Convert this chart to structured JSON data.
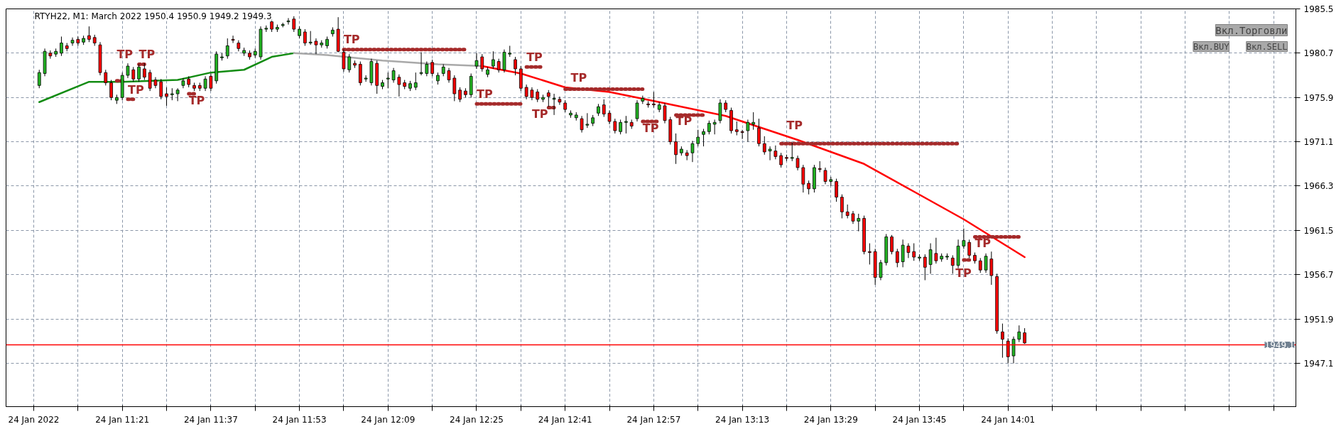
{
  "chart_data": {
    "type": "candlestick",
    "title": "RTYH22, M1:  March 2022  1950.4 1950.9 1949.2 1949.3",
    "colors": [
      "#22b422",
      "#22b422",
      "#ff0000",
      "#22b422",
      "#22b422",
      "#ff0000",
      "#22b422",
      "#ff0000",
      "#22b422",
      "#ff0000",
      "#ff0000",
      "#ff0000",
      "#ff0000",
      "#ff0000",
      "#22b422",
      "#22b422",
      "#22b422",
      "#ff0000",
      "#22b422",
      "#ff0000",
      "#ff0000",
      "#ff0000",
      "#ff0000",
      "#ff0000",
      "#22b422",
      "#22b422",
      "#22b422",
      "#ff0000",
      "#ff0000",
      "#ff0000",
      "#22b422",
      "#ff0000",
      "#22b422",
      "#22b422",
      "#22b422",
      "#ff0000",
      "#ff0000",
      "#22b422",
      "#ff0000",
      "#22b422",
      "#22b422",
      "#22b422",
      "#ff0000",
      "#22b422",
      "#22b422",
      "#22b422",
      "#ff0000",
      "#22b422",
      "#ff0000",
      "#22b422",
      "#ff0000",
      "#22b422",
      "#22b422",
      "#22b422",
      "#ff0000",
      "#ff0000",
      "#22b422",
      "#ff0000",
      "#ff0000",
      "#22b422",
      "#22b422",
      "#ff0000",
      "#22b422",
      "#22b422",
      "#22b422",
      "#ff0000",
      "#ff0000",
      "#22b422",
      "#22b422",
      "#22b422",
      "#22b422",
      "#ff0000",
      "#22b422",
      "#22b422",
      "#ff0000",
      "#ff0000",
      "#ff0000",
      "#ff0000",
      "#22b422",
      "#22b422",
      "#ff0000",
      "#22b422",
      "#22b422",
      "#ff0000",
      "#22b422",
      "#22b422",
      "#ff0000",
      "#ff0000",
      "#ff0000",
      "#ff0000",
      "#ff0000",
      "#22b422",
      "#ff0000",
      "#22b422",
      "#ff0000",
      "#ff0000",
      "#22b422",
      "#22b422",
      "#ff0000",
      "#22b422",
      "#22b422",
      "#22b422",
      "#ff0000",
      "#ff0000",
      "#ff0000",
      "#22b422",
      "#22b422",
      "#ff0000",
      "#22b422",
      "#22b422",
      "#ff0000",
      "#ff0000",
      "#22b422",
      "#ff0000",
      "#ff0000",
      "#ff0000",
      "#22b422",
      "#ff0000",
      "#22b422",
      "#22b422",
      "#22b422",
      "#22b422",
      "#22b422",
      "#22b422",
      "#ff0000",
      "#ff0000",
      "#ff0000",
      "#ff0000",
      "#22b422",
      "#22b422",
      "#ff0000",
      "#ff0000",
      "#22b422",
      "#ff0000",
      "#ff0000",
      "#ff0000",
      "#22b422",
      "#ff0000",
      "#ff0000",
      "#ff0000",
      "#22b422",
      "#ff0000",
      "#ff0000",
      "#22b422",
      "#ff0000",
      "#ff0000",
      "#ff0000",
      "#ff0000",
      "#22b422",
      "#ff0000",
      "#ff0000",
      "#ff0000",
      "#22b422",
      "#22b422",
      "#ff0000",
      "#ff0000",
      "#22b422",
      "#ff0000",
      "#ff0000",
      "#22b422",
      "#ff0000",
      "#22b422",
      "#ff0000",
      "#22b422",
      "#22b422",
      "#ff0000",
      "#22b422",
      "#22b422",
      "#ff0000",
      "#ff0000",
      "#ff0000",
      "#22b422",
      "#ff0000",
      "#ff0000",
      "#ff0000",
      "#ff0000",
      "#22b422",
      "#22b422",
      "#ff0000"
    ],
    "x": [
      "2022-01-24T11:06",
      "2022-01-24T11:07",
      "2022-01-24T11:08",
      "2022-01-24T11:09",
      "2022-01-24T11:10",
      "2022-01-24T11:11",
      "2022-01-24T11:12",
      "2022-01-24T11:13",
      "2022-01-24T11:14",
      "2022-01-24T11:15",
      "2022-01-24T11:16",
      "2022-01-24T11:17",
      "2022-01-24T11:18",
      "2022-01-24T11:19",
      "2022-01-24T11:20",
      "2022-01-24T11:21",
      "2022-01-24T11:22",
      "2022-01-24T11:23",
      "2022-01-24T11:24",
      "2022-01-24T11:25",
      "2022-01-24T11:26",
      "2022-01-24T11:27",
      "2022-01-24T11:28",
      "2022-01-24T11:29",
      "2022-01-24T11:30",
      "2022-01-24T11:31",
      "2022-01-24T11:32",
      "2022-01-24T11:33",
      "2022-01-24T11:34",
      "2022-01-24T11:35",
      "2022-01-24T11:36",
      "2022-01-24T11:37",
      "2022-01-24T11:38",
      "2022-01-24T11:39",
      "2022-01-24T11:40",
      "2022-01-24T11:41",
      "2022-01-24T11:42",
      "2022-01-24T11:43",
      "2022-01-24T11:44",
      "2022-01-24T11:45",
      "2022-01-24T11:46",
      "2022-01-24T11:47",
      "2022-01-24T11:48",
      "2022-01-24T11:49",
      "2022-01-24T11:50",
      "2022-01-24T11:51",
      "2022-01-24T11:52",
      "2022-01-24T11:53",
      "2022-01-24T11:54",
      "2022-01-24T11:55",
      "2022-01-24T11:56",
      "2022-01-24T11:57",
      "2022-01-24T11:58",
      "2022-01-24T11:59",
      "2022-01-24T12:00",
      "2022-01-24T12:01",
      "2022-01-24T12:02",
      "2022-01-24T12:03",
      "2022-01-24T12:04",
      "2022-01-24T12:05",
      "2022-01-24T12:06",
      "2022-01-24T12:07",
      "2022-01-24T12:08",
      "2022-01-24T12:09",
      "2022-01-24T12:10",
      "2022-01-24T12:11",
      "2022-01-24T12:12",
      "2022-01-24T12:13",
      "2022-01-24T12:14",
      "2022-01-24T12:15",
      "2022-01-24T12:16",
      "2022-01-24T12:17",
      "2022-01-24T12:18",
      "2022-01-24T12:19",
      "2022-01-24T12:20",
      "2022-01-24T12:21",
      "2022-01-24T12:22",
      "2022-01-24T12:23",
      "2022-01-24T12:24",
      "2022-01-24T12:25",
      "2022-01-24T12:26",
      "2022-01-24T12:27",
      "2022-01-24T12:28",
      "2022-01-24T12:29",
      "2022-01-24T12:30",
      "2022-01-24T12:31",
      "2022-01-24T12:32",
      "2022-01-24T12:33",
      "2022-01-24T12:34",
      "2022-01-24T12:35",
      "2022-01-24T12:36",
      "2022-01-24T12:37",
      "2022-01-24T12:38",
      "2022-01-24T12:39",
      "2022-01-24T12:40",
      "2022-01-24T12:41",
      "2022-01-24T12:42",
      "2022-01-24T12:43",
      "2022-01-24T12:44",
      "2022-01-24T12:45",
      "2022-01-24T12:46",
      "2022-01-24T12:47",
      "2022-01-24T12:48",
      "2022-01-24T12:49",
      "2022-01-24T12:50",
      "2022-01-24T12:51",
      "2022-01-24T12:52",
      "2022-01-24T12:53",
      "2022-01-24T12:54",
      "2022-01-24T12:55",
      "2022-01-24T12:56",
      "2022-01-24T12:57",
      "2022-01-24T12:58",
      "2022-01-24T12:59",
      "2022-01-24T13:00",
      "2022-01-24T13:01",
      "2022-01-24T13:02",
      "2022-01-24T13:03",
      "2022-01-24T13:04",
      "2022-01-24T13:05",
      "2022-01-24T13:06",
      "2022-01-24T13:07",
      "2022-01-24T13:08",
      "2022-01-24T13:09",
      "2022-01-24T13:10",
      "2022-01-24T13:11",
      "2022-01-24T13:12",
      "2022-01-24T13:13",
      "2022-01-24T13:14",
      "2022-01-24T13:15",
      "2022-01-24T13:16",
      "2022-01-24T13:17",
      "2022-01-24T13:18",
      "2022-01-24T13:19",
      "2022-01-24T13:20",
      "2022-01-24T13:21",
      "2022-01-24T13:22",
      "2022-01-24T13:23",
      "2022-01-24T13:24",
      "2022-01-24T13:25",
      "2022-01-24T13:26",
      "2022-01-24T13:27",
      "2022-01-24T13:28",
      "2022-01-24T13:29",
      "2022-01-24T13:30",
      "2022-01-24T13:31",
      "2022-01-24T13:32",
      "2022-01-24T13:33",
      "2022-01-24T13:34",
      "2022-01-24T13:35",
      "2022-01-24T13:36",
      "2022-01-24T13:37",
      "2022-01-24T13:38",
      "2022-01-24T13:39",
      "2022-01-24T13:40",
      "2022-01-24T13:41",
      "2022-01-24T13:42",
      "2022-01-24T13:43",
      "2022-01-24T13:44",
      "2022-01-24T13:45",
      "2022-01-24T13:46",
      "2022-01-24T13:47",
      "2022-01-24T13:48",
      "2022-01-24T13:49",
      "2022-01-24T13:50",
      "2022-01-24T13:51",
      "2022-01-24T13:52",
      "2022-01-24T13:53",
      "2022-01-24T13:54",
      "2022-01-24T13:55",
      "2022-01-24T13:56",
      "2022-01-24T13:57",
      "2022-01-24T13:58",
      "2022-01-24T13:59",
      "2022-01-24T14:00",
      "2022-01-24T14:01",
      "2022-01-24T14:02",
      "2022-01-24T14:03",
      "2022-01-24T14:04"
    ],
    "ohlc": [
      [
        1977.2,
        1978.9,
        1976.9,
        1978.6
      ],
      [
        1978.5,
        1981.2,
        1978.2,
        1980.9
      ],
      [
        1980.7,
        1981.0,
        1980.1,
        1980.4
      ],
      [
        1980.6,
        1981.2,
        1980.3,
        1980.9
      ],
      [
        1980.7,
        1982.5,
        1980.4,
        1981.8
      ],
      [
        1981.5,
        1981.8,
        1980.9,
        1981.2
      ],
      [
        1981.8,
        1982.4,
        1981.5,
        1982.1
      ],
      [
        1982.2,
        1982.5,
        1981.5,
        1981.8
      ],
      [
        1981.9,
        1982.6,
        1981.6,
        1982.3
      ],
      [
        1982.6,
        1983.6,
        1981.9,
        1982.2
      ],
      [
        1982.4,
        1982.7,
        1981.5,
        1981.8
      ],
      [
        1981.6,
        1981.9,
        1978.3,
        1978.6
      ],
      [
        1978.6,
        1978.9,
        1977.2,
        1977.5
      ],
      [
        1977.5,
        1977.8,
        1975.6,
        1975.9
      ],
      [
        1975.6,
        1976.2,
        1975.2,
        1975.9
      ],
      [
        1975.9,
        1978.6,
        1975.6,
        1978.3
      ],
      [
        1978.3,
        1979.6,
        1978.0,
        1979.3
      ],
      [
        1978.9,
        1979.2,
        1977.6,
        1977.9
      ],
      [
        1977.9,
        1979.5,
        1977.6,
        1979.2
      ],
      [
        1979.0,
        1979.6,
        1977.8,
        1978.1
      ],
      [
        1978.6,
        1978.9,
        1976.6,
        1976.9
      ],
      [
        1977.8,
        1978.1,
        1976.9,
        1977.2
      ],
      [
        1977.6,
        1977.9,
        1975.7,
        1976.0
      ],
      [
        1976.3,
        1977.0,
        1975.0,
        1976.0
      ],
      [
        1976.2,
        1976.9,
        1975.6,
        1976.3
      ],
      [
        1976.3,
        1976.9,
        1975.5,
        1976.7
      ],
      [
        1977.2,
        1978.0,
        1976.9,
        1977.7
      ],
      [
        1977.9,
        1978.2,
        1977.0,
        1977.3
      ],
      [
        1977.2,
        1977.5,
        1976.6,
        1976.9
      ],
      [
        1977.2,
        1977.5,
        1976.6,
        1976.9
      ],
      [
        1976.9,
        1978.2,
        1976.6,
        1977.9
      ],
      [
        1978.2,
        1978.5,
        1976.6,
        1976.9
      ],
      [
        1977.7,
        1980.9,
        1977.4,
        1980.6
      ],
      [
        1980.2,
        1980.7,
        1979.9,
        1980.3
      ],
      [
        1980.4,
        1982.3,
        1980.1,
        1981.5
      ],
      [
        1982.2,
        1982.6,
        1981.8,
        1982.1
      ],
      [
        1981.8,
        1982.1,
        1980.9,
        1981.2
      ],
      [
        1980.7,
        1981.3,
        1980.4,
        1981.0
      ],
      [
        1980.7,
        1981.0,
        1980.0,
        1980.3
      ],
      [
        1980.5,
        1981.2,
        1980.2,
        1980.9
      ],
      [
        1980.3,
        1983.6,
        1980.0,
        1983.3
      ],
      [
        1983.3,
        1983.7,
        1983.0,
        1983.4
      ],
      [
        1984.1,
        1984.4,
        1983.0,
        1983.3
      ],
      [
        1983.3,
        1983.8,
        1983.0,
        1983.5
      ],
      [
        1983.7,
        1984.0,
        1983.5,
        1983.8
      ],
      [
        1984.1,
        1984.5,
        1983.8,
        1984.2
      ],
      [
        1984.4,
        1984.7,
        1983.0,
        1983.3
      ],
      [
        1982.6,
        1983.6,
        1982.3,
        1983.3
      ],
      [
        1983.0,
        1983.3,
        1981.5,
        1981.8
      ],
      [
        1981.8,
        1983.1,
        1981.6,
        1981.9
      ],
      [
        1982.0,
        1982.3,
        1980.6,
        1981.6
      ],
      [
        1981.6,
        1982.1,
        1981.3,
        1981.8
      ],
      [
        1981.5,
        1982.5,
        1981.2,
        1982.2
      ],
      [
        1982.8,
        1983.5,
        1982.5,
        1983.2
      ],
      [
        1983.3,
        1984.6,
        1980.8,
        1980.9
      ],
      [
        1980.8,
        1981.1,
        1978.7,
        1979.0
      ],
      [
        1978.9,
        1980.6,
        1978.6,
        1980.3
      ],
      [
        1979.6,
        1979.9,
        1979.1,
        1979.4
      ],
      [
        1979.5,
        1979.8,
        1977.2,
        1977.5
      ],
      [
        1977.9,
        1978.3,
        1977.6,
        1978.0
      ],
      [
        1977.5,
        1980.1,
        1977.2,
        1979.8
      ],
      [
        1979.6,
        1979.9,
        1976.3,
        1977.2
      ],
      [
        1977.1,
        1977.8,
        1976.8,
        1977.5
      ],
      [
        1977.9,
        1978.6,
        1976.9,
        1978.0
      ],
      [
        1977.8,
        1979.1,
        1977.5,
        1978.8
      ],
      [
        1978.1,
        1978.4,
        1976.0,
        1977.3
      ],
      [
        1977.5,
        1977.8,
        1976.8,
        1977.1
      ],
      [
        1976.9,
        1977.7,
        1976.6,
        1977.4
      ],
      [
        1977.0,
        1978.6,
        1976.7,
        1977.5
      ],
      [
        1978.5,
        1980.8,
        1978.3,
        1978.6
      ],
      [
        1978.5,
        1979.8,
        1978.2,
        1979.5
      ],
      [
        1979.7,
        1980.0,
        1978.2,
        1978.5
      ],
      [
        1977.7,
        1978.6,
        1977.3,
        1978.3
      ],
      [
        1978.5,
        1979.5,
        1978.2,
        1979.2
      ],
      [
        1978.8,
        1979.1,
        1977.5,
        1977.8
      ],
      [
        1978.0,
        1978.3,
        1975.5,
        1976.3
      ],
      [
        1976.7,
        1977.0,
        1975.4,
        1975.7
      ],
      [
        1976.6,
        1976.9,
        1975.9,
        1976.2
      ],
      [
        1976.2,
        1978.5,
        1975.9,
        1978.2
      ],
      [
        1979.3,
        1980.7,
        1979.0,
        1979.9
      ],
      [
        1980.3,
        1980.6,
        1978.7,
        1979.0
      ],
      [
        1978.4,
        1979.2,
        1978.1,
        1978.9
      ],
      [
        1979.3,
        1980.9,
        1979.0,
        1980.0
      ],
      [
        1979.8,
        1980.1,
        1978.6,
        1978.9
      ],
      [
        1978.9,
        1981.1,
        1978.6,
        1980.8
      ],
      [
        1980.6,
        1981.5,
        1980.3,
        1980.7
      ],
      [
        1980.0,
        1980.3,
        1978.3,
        1979.0
      ],
      [
        1979.0,
        1979.3,
        1976.6,
        1976.9
      ],
      [
        1977.0,
        1977.3,
        1975.7,
        1976.0
      ],
      [
        1976.7,
        1977.0,
        1975.6,
        1975.9
      ],
      [
        1976.5,
        1976.8,
        1975.4,
        1975.7
      ],
      [
        1975.7,
        1976.2,
        1975.4,
        1975.9
      ],
      [
        1976.4,
        1976.7,
        1974.9,
        1976.0
      ],
      [
        1975.7,
        1976.3,
        1974.0,
        1975.8
      ],
      [
        1975.7,
        1976.0,
        1975.1,
        1975.4
      ],
      [
        1975.3,
        1975.6,
        1974.3,
        1974.6
      ],
      [
        1974.0,
        1974.5,
        1973.7,
        1974.2
      ],
      [
        1973.7,
        1974.3,
        1973.4,
        1974.0
      ],
      [
        1973.6,
        1973.9,
        1972.1,
        1972.4
      ],
      [
        1972.9,
        1974.2,
        1972.6,
        1973.0
      ],
      [
        1973.1,
        1974.0,
        1972.8,
        1973.7
      ],
      [
        1974.2,
        1975.2,
        1973.9,
        1974.9
      ],
      [
        1975.1,
        1975.7,
        1973.8,
        1974.1
      ],
      [
        1974.2,
        1974.5,
        1973.0,
        1973.3
      ],
      [
        1973.3,
        1973.6,
        1972.0,
        1972.3
      ],
      [
        1972.2,
        1973.5,
        1971.9,
        1973.2
      ],
      [
        1973.2,
        1973.9,
        1972.0,
        1973.3
      ],
      [
        1973.2,
        1973.5,
        1972.5,
        1972.8
      ],
      [
        1973.6,
        1975.6,
        1973.3,
        1975.3
      ],
      [
        1975.5,
        1976.1,
        1975.2,
        1975.8
      ],
      [
        1975.2,
        1975.5,
        1974.8,
        1975.1
      ],
      [
        1975.2,
        1976.5,
        1974.8,
        1975.1
      ],
      [
        1974.6,
        1975.4,
        1974.3,
        1975.1
      ],
      [
        1975.0,
        1975.3,
        1973.1,
        1973.4
      ],
      [
        1973.5,
        1973.8,
        1970.8,
        1971.1
      ],
      [
        1971.1,
        1972.0,
        1968.7,
        1969.7
      ],
      [
        1969.9,
        1970.6,
        1969.6,
        1970.3
      ],
      [
        1969.9,
        1970.2,
        1969.1,
        1969.6
      ],
      [
        1969.9,
        1971.2,
        1968.9,
        1970.9
      ],
      [
        1970.9,
        1972.4,
        1970.6,
        1971.6
      ],
      [
        1971.9,
        1972.5,
        1970.6,
        1972.2
      ],
      [
        1972.2,
        1973.4,
        1971.9,
        1973.1
      ],
      [
        1973.0,
        1973.5,
        1971.9,
        1973.2
      ],
      [
        1973.4,
        1975.7,
        1973.1,
        1975.3
      ],
      [
        1975.3,
        1975.6,
        1974.3,
        1974.6
      ],
      [
        1974.5,
        1974.8,
        1972.0,
        1972.3
      ],
      [
        1972.4,
        1973.3,
        1971.8,
        1972.2
      ],
      [
        1972.2,
        1972.4,
        1971.4,
        1972.1
      ],
      [
        1972.3,
        1973.5,
        1971.1,
        1973.2
      ],
      [
        1973.0,
        1974.3,
        1972.4,
        1973.2
      ],
      [
        1972.6,
        1973.6,
        1970.6,
        1970.9
      ],
      [
        1970.9,
        1971.7,
        1969.7,
        1970.0
      ],
      [
        1970.1,
        1970.6,
        1969.1,
        1970.3
      ],
      [
        1970.1,
        1970.7,
        1969.2,
        1969.5
      ],
      [
        1969.6,
        1969.9,
        1968.3,
        1968.6
      ],
      [
        1969.4,
        1969.7,
        1969.0,
        1969.3
      ],
      [
        1969.3,
        1971.0,
        1969.0,
        1969.4
      ],
      [
        1969.3,
        1969.6,
        1968.0,
        1968.3
      ],
      [
        1968.3,
        1968.6,
        1965.6,
        1966.5
      ],
      [
        1966.6,
        1966.9,
        1965.4,
        1966.0
      ],
      [
        1966.0,
        1968.6,
        1965.6,
        1968.3
      ],
      [
        1968.2,
        1969.0,
        1967.8,
        1968.1
      ],
      [
        1968.0,
        1968.3,
        1966.5,
        1966.8
      ],
      [
        1966.8,
        1967.3,
        1966.3,
        1967.0
      ],
      [
        1966.8,
        1967.1,
        1964.6,
        1965.1
      ],
      [
        1965.1,
        1965.4,
        1962.8,
        1963.5
      ],
      [
        1963.5,
        1964.3,
        1962.8,
        1963.1
      ],
      [
        1963.3,
        1963.6,
        1962.2,
        1962.5
      ],
      [
        1962.5,
        1963.3,
        1961.4,
        1962.8
      ],
      [
        1962.8,
        1963.1,
        1958.9,
        1959.2
      ],
      [
        1959.2,
        1960.1,
        1957.8,
        1959.1
      ],
      [
        1959.2,
        1959.5,
        1955.6,
        1956.4
      ],
      [
        1956.4,
        1958.3,
        1956.1,
        1958.0
      ],
      [
        1958.0,
        1961.1,
        1957.7,
        1960.8
      ],
      [
        1960.8,
        1961.0,
        1958.9,
        1959.2
      ],
      [
        1959.2,
        1959.5,
        1957.5,
        1958.0
      ],
      [
        1958.1,
        1960.5,
        1957.5,
        1959.9
      ],
      [
        1959.8,
        1960.1,
        1958.5,
        1959.1
      ],
      [
        1959.2,
        1960.1,
        1958.2,
        1958.6
      ],
      [
        1958.5,
        1958.9,
        1958.2,
        1958.6
      ],
      [
        1958.6,
        1958.9,
        1956.1,
        1957.5
      ],
      [
        1957.8,
        1960.1,
        1956.8,
        1959.4
      ],
      [
        1959.0,
        1960.7,
        1957.9,
        1958.2
      ],
      [
        1958.4,
        1959.0,
        1958.1,
        1958.7
      ],
      [
        1958.6,
        1959.0,
        1958.3,
        1958.7
      ],
      [
        1958.5,
        1958.8,
        1956.8,
        1957.7
      ],
      [
        1957.7,
        1960.5,
        1957.4,
        1959.8
      ],
      [
        1959.8,
        1961.7,
        1959.5,
        1960.4
      ],
      [
        1960.2,
        1960.5,
        1958.5,
        1958.8
      ],
      [
        1958.8,
        1959.1,
        1957.9,
        1958.2
      ],
      [
        1958.2,
        1958.5,
        1956.9,
        1957.2
      ],
      [
        1957.2,
        1959.0,
        1956.9,
        1958.7
      ],
      [
        1958.4,
        1959.2,
        1955.6,
        1956.6
      ],
      [
        1956.5,
        1956.8,
        1950.3,
        1950.6
      ],
      [
        1950.5,
        1951.4,
        1947.7,
        1949.7
      ],
      [
        1949.5,
        1949.8,
        1947.1,
        1947.8
      ],
      [
        1947.9,
        1950.0,
        1947.1,
        1949.7
      ],
      [
        1949.7,
        1951.2,
        1949.4,
        1950.5
      ],
      [
        1950.4,
        1950.9,
        1949.2,
        1949.3
      ]
    ],
    "series": [
      {
        "type": "line",
        "color": "#138c13",
        "x": [
          "2022-01-24T11:06",
          "2022-01-24T11:15",
          "2022-01-24T11:21",
          "2022-01-24T11:31",
          "2022-01-24T11:37",
          "2022-01-24T11:43",
          "2022-01-24T11:48",
          "2022-01-24T11:52"
        ],
        "values": [
          1975.4,
          1977.6,
          1977.6,
          1977.8,
          1978.6,
          1978.9,
          1980.3,
          1980.7
        ]
      },
      {
        "type": "line",
        "color": "#a9a9a9",
        "x": [
          "2022-01-24T11:52",
          "2022-01-24T11:58",
          "2022-01-24T12:08",
          "2022-01-24T12:18",
          "2022-01-24T12:26"
        ],
        "values": [
          1980.7,
          1980.5,
          1979.9,
          1979.5,
          1979.3
        ]
      },
      {
        "type": "line",
        "color": "#ff0000",
        "x": [
          "2022-01-24T12:26",
          "2022-01-24T12:33",
          "2022-01-24T12:41",
          "2022-01-24T12:49",
          "2022-01-24T12:58",
          "2022-01-24T13:10",
          "2022-01-24T13:23",
          "2022-01-24T13:35",
          "2022-01-24T13:44",
          "2022-01-24T13:53",
          "2022-01-24T14:04"
        ],
        "values": [
          1979.3,
          1978.5,
          1977.0,
          1976.5,
          1975.4,
          1973.9,
          1971.3,
          1968.7,
          1965.7,
          1962.7,
          1958.6
        ]
      },
      {
        "type": "line",
        "line_style": "dotted",
        "color": "#a52a2a",
        "x": [
          "2022-01-24T12:01",
          "2022-01-24T12:23"
        ],
        "values": [
          1981.1,
          1981.1
        ]
      },
      {
        "type": "line",
        "line_style": "dotted",
        "color": "#a52a2a",
        "x": [
          "2022-01-24T12:25",
          "2022-01-24T12:33"
        ],
        "values": [
          1975.2,
          1975.2
        ]
      },
      {
        "type": "line",
        "line_style": "dotted",
        "color": "#a52a2a",
        "x": [
          "2022-01-24T12:34",
          "2022-01-24T12:37"
        ],
        "values": [
          1979.2,
          1979.2
        ]
      },
      {
        "type": "line",
        "line_style": "dotted",
        "color": "#a52a2a",
        "x": [
          "2022-01-24T12:41",
          "2022-01-24T12:55"
        ],
        "values": [
          1976.8,
          1976.8
        ]
      },
      {
        "type": "line",
        "line_style": "dotted",
        "color": "#a52a2a",
        "x": [
          "2022-01-24T12:55",
          "2022-01-24T12:58"
        ],
        "values": [
          1973.3,
          1973.3
        ]
      },
      {
        "type": "line",
        "line_style": "dotted",
        "color": "#a52a2a",
        "x": [
          "2022-01-24T13:01",
          "2022-01-24T13:06"
        ],
        "values": [
          1974.0,
          1974.0
        ]
      },
      {
        "type": "line",
        "line_style": "dotted",
        "color": "#a52a2a",
        "x": [
          "2022-01-24T13:20",
          "2022-01-24T13:52"
        ],
        "values": [
          1970.9,
          1970.9
        ]
      },
      {
        "type": "line",
        "line_style": "dotted",
        "color": "#a52a2a",
        "x": [
          "2022-01-24T13:55",
          "2022-01-24T14:03"
        ],
        "values": [
          1960.8,
          1960.8
        ]
      },
      {
        "type": "line",
        "line_style": "dotted",
        "color": "#a52a2a",
        "x": [
          "2022-01-24T11:24",
          "2022-01-24T11:25"
        ],
        "values": [
          1979.5,
          1979.5
        ]
      },
      {
        "type": "line",
        "line_style": "dotted",
        "color": "#a52a2a",
        "x": [
          "2022-01-24T11:20",
          "2022-01-24T11:21"
        ],
        "values": [
          1977.7,
          1977.7
        ]
      },
      {
        "type": "line",
        "line_style": "dotted",
        "color": "#a52a2a",
        "x": [
          "2022-01-24T11:22",
          "2022-01-24T11:23"
        ],
        "values": [
          1975.7,
          1975.7
        ]
      },
      {
        "type": "line",
        "line_style": "dotted",
        "color": "#a52a2a",
        "x": [
          "2022-01-24T11:33",
          "2022-01-24T11:34"
        ],
        "values": [
          1976.3,
          1976.3
        ]
      },
      {
        "type": "line",
        "line_style": "dotted",
        "color": "#a52a2a",
        "x": [
          "2022-01-24T12:38",
          "2022-01-24T12:39"
        ],
        "values": [
          1974.8,
          1974.8
        ]
      },
      {
        "type": "line",
        "line_style": "dotted",
        "color": "#a52a2a",
        "x": [
          "2022-01-24T13:53",
          "2022-01-24T13:54"
        ],
        "values": [
          1958.3,
          1958.3
        ]
      }
    ],
    "ref_lines": [
      {
        "axis": "y",
        "value": 1949.1,
        "label": "1949.1",
        "color": "#ff0000"
      }
    ],
    "annotations": [
      {
        "text": "TP",
        "x": "2022-01-24T11:24",
        "y": 1979.5
      },
      {
        "text": "TP",
        "x": "2022-01-24T11:20",
        "y": 1977.7
      },
      {
        "text": "TP",
        "x": "2022-01-24T11:22",
        "y": 1975.7
      },
      {
        "text": "TP",
        "x": "2022-01-24T11:33",
        "y": 1976.3
      },
      {
        "text": "TP",
        "x": "2022-01-24T12:01",
        "y": 1981.1
      },
      {
        "text": "TP",
        "x": "2022-01-24T12:34",
        "y": 1979.2
      },
      {
        "text": "TP",
        "x": "2022-01-24T12:25",
        "y": 1975.2
      },
      {
        "text": "TP",
        "x": "2022-01-24T12:41",
        "y": 1976.8
      },
      {
        "text": "TP",
        "x": "2022-01-24T12:38",
        "y": 1974.8
      },
      {
        "text": "TP",
        "x": "2022-01-24T12:55",
        "y": 1973.3
      },
      {
        "text": "TP",
        "x": "2022-01-24T13:01",
        "y": 1974.0
      },
      {
        "text": "TP",
        "x": "2022-01-24T13:20",
        "y": 1970.9
      },
      {
        "text": "TP",
        "x": "2022-01-24T13:55",
        "y": 1960.8
      },
      {
        "text": "TP",
        "x": "2022-01-24T13:53",
        "y": 1958.3
      },
      "Вкл.Торговли",
      "Вкл.BUY",
      "Вкл.SELL"
    ],
    "xlim": [
      "2022-01-24T11:00",
      "2022-01-24T14:53"
    ],
    "xticks": [
      {
        "value": "2022-01-24T11:05",
        "label": "24 Jan 2022"
      },
      {
        "value": "2022-01-24T11:13",
        "label": null
      },
      {
        "value": "2022-01-24T11:21",
        "label": "24 Jan 11:21"
      },
      {
        "value": "2022-01-24T11:29",
        "label": null
      },
      {
        "value": "2022-01-24T11:37",
        "label": "24 Jan 11:37"
      },
      {
        "value": "2022-01-24T11:45",
        "label": null
      },
      {
        "value": "2022-01-24T11:53",
        "label": "24 Jan 11:53"
      },
      {
        "value": "2022-01-24T12:01",
        "label": null
      },
      {
        "value": "2022-01-24T12:09",
        "label": "24 Jan 12:09"
      },
      {
        "value": "2022-01-24T12:17",
        "label": null
      },
      {
        "value": "2022-01-24T12:25",
        "label": "24 Jan 12:25"
      },
      {
        "value": "2022-01-24T12:33",
        "label": null
      },
      {
        "value": "2022-01-24T12:41",
        "label": "24 Jan 12:41"
      },
      {
        "value": "2022-01-24T12:49",
        "label": null
      },
      {
        "value": "2022-01-24T12:57",
        "label": "24 Jan 12:57"
      },
      {
        "value": "2022-01-24T13:05",
        "label": null
      },
      {
        "value": "2022-01-24T13:13",
        "label": "24 Jan 13:13"
      },
      {
        "value": "2022-01-24T13:21",
        "label": null
      },
      {
        "value": "2022-01-24T13:29",
        "label": "24 Jan 13:29"
      },
      {
        "value": "2022-01-24T13:37",
        "label": null
      },
      {
        "value": "2022-01-24T13:45",
        "label": "24 Jan 13:45"
      },
      {
        "value": "2022-01-24T13:53",
        "label": null
      },
      {
        "value": "2022-01-24T14:01",
        "label": "24 Jan 14:01"
      },
      {
        "value": "2022-01-24T14:09",
        "label": null
      },
      {
        "value": "2022-01-24T14:17",
        "label": null
      },
      {
        "value": "2022-01-24T14:25",
        "label": null
      },
      {
        "value": "2022-01-24T14:33",
        "label": null
      },
      {
        "value": "2022-01-24T14:41",
        "label": null
      },
      {
        "value": "2022-01-24T14:49",
        "label": null
      }
    ],
    "ylim": [
      1942.4,
      1985.5
    ],
    "yticks": [
      1985.5,
      1980.7,
      1975.9,
      1971.1,
      1966.3,
      1961.5,
      1956.7,
      1951.9,
      1947.1
    ],
    "grid": true
  }
}
